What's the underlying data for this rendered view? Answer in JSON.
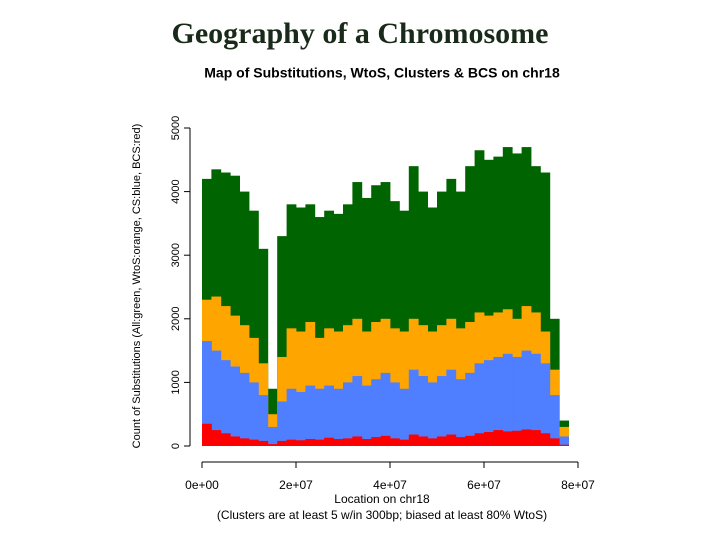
{
  "slide_title": "Geography of a Chromosome",
  "chart_data": {
    "type": "histogram",
    "title": "Map of Substitutions, WtoS, Clusters & BCS on chr18",
    "ylabel": "Count of Substitutions (All:green, WtoS:orange, CS:blue, BCS:red)",
    "xlabel": "Location on chr18",
    "subtitle": "(Clusters are at least 5 w/in 300bp; biased at least 80% WtoS)",
    "bins": [
      0,
      2000000,
      4000000,
      6000000,
      8000000,
      10000000,
      12000000,
      14000000,
      16000000,
      18000000,
      20000000,
      22000000,
      24000000,
      26000000,
      28000000,
      30000000,
      32000000,
      34000000,
      36000000,
      38000000,
      40000000,
      42000000,
      44000000,
      46000000,
      48000000,
      50000000,
      52000000,
      54000000,
      56000000,
      58000000,
      60000000,
      62000000,
      64000000,
      66000000,
      68000000,
      70000000,
      72000000,
      74000000,
      76000000,
      78000000
    ],
    "series": [
      {
        "color": "#006400",
        "values": [
          4200,
          4350,
          4300,
          4250,
          4000,
          3700,
          3100,
          900,
          3300,
          3800,
          3750,
          3800,
          3600,
          3700,
          3650,
          3800,
          4150,
          3900,
          4100,
          4150,
          3850,
          3700,
          4400,
          4000,
          3750,
          4000,
          4200,
          4000,
          4400,
          4650,
          4500,
          4550,
          4700,
          4600,
          4700,
          4400,
          4300,
          2000,
          400
        ]
      },
      {
        "color": "#ffa500",
        "values": [
          2300,
          2350,
          2200,
          2050,
          1900,
          1700,
          1300,
          500,
          1400,
          1850,
          1800,
          1950,
          1700,
          1850,
          1800,
          1900,
          2000,
          1800,
          1950,
          2000,
          1850,
          1800,
          2000,
          1900,
          1800,
          1900,
          2000,
          1850,
          1950,
          2100,
          2050,
          2100,
          2150,
          2000,
          2200,
          2100,
          1800,
          1200,
          300
        ]
      },
      {
        "color": "#4f7fff",
        "values": [
          1650,
          1500,
          1350,
          1250,
          1150,
          1000,
          800,
          300,
          700,
          900,
          850,
          950,
          900,
          950,
          900,
          1000,
          1100,
          950,
          1050,
          1150,
          1000,
          900,
          1200,
          1100,
          1000,
          1100,
          1200,
          1050,
          1150,
          1300,
          1350,
          1400,
          1450,
          1400,
          1500,
          1450,
          1300,
          800,
          150
        ]
      },
      {
        "color": "#ff0000",
        "values": [
          350,
          250,
          200,
          150,
          120,
          100,
          80,
          30,
          80,
          100,
          90,
          110,
          100,
          130,
          110,
          120,
          150,
          110,
          140,
          160,
          120,
          100,
          180,
          150,
          120,
          150,
          180,
          140,
          160,
          200,
          220,
          250,
          230,
          240,
          260,
          250,
          200,
          120,
          20
        ]
      }
    ],
    "xlim": [
      0,
      80000000
    ],
    "xticks": [
      {
        "value": 0,
        "label": "0e+00"
      },
      {
        "value": 20000000,
        "label": "2e+07"
      },
      {
        "value": 40000000,
        "label": "4e+07"
      },
      {
        "value": 60000000,
        "label": "6e+07"
      },
      {
        "value": 80000000,
        "label": "8e+07"
      }
    ],
    "ylim": [
      0,
      5000
    ],
    "yticks": [
      0,
      1000,
      2000,
      3000,
      4000,
      5000
    ]
  }
}
